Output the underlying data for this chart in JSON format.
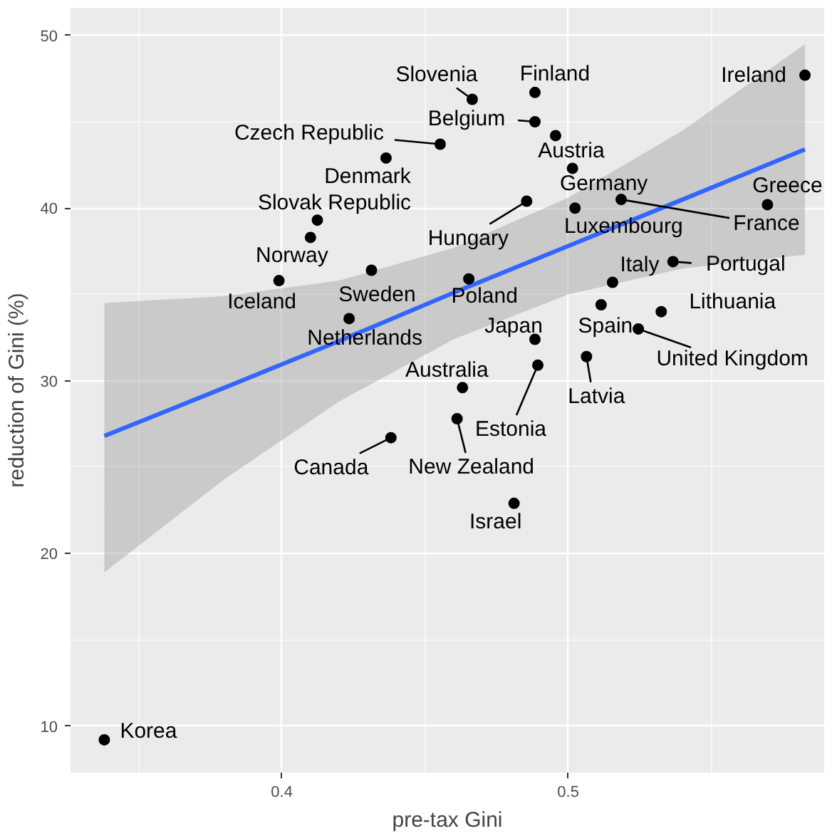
{
  "chart_data": {
    "type": "scatter",
    "xlabel": "pre-tax Gini",
    "ylabel": "reduction of Gini (%)",
    "xlim": [
      0.3262,
      0.5894
    ],
    "ylim": [
      7.3,
      51.6
    ],
    "xticks": [
      0.4,
      0.5
    ],
    "yticks": [
      10,
      20,
      30,
      40,
      50
    ],
    "grid": true,
    "marker": "circle",
    "x": [
      0.338,
      0.399,
      0.41,
      0.4124,
      0.4364,
      0.4553,
      0.4313,
      0.4235,
      0.4665,
      0.4884,
      0.4884,
      0.4956,
      0.5015,
      0.4855,
      0.5024,
      0.5185,
      0.5696,
      0.5827,
      0.5366,
      0.5155,
      0.4653,
      0.5115,
      0.5325,
      0.5245,
      0.4884,
      0.4894,
      0.5064,
      0.4631,
      0.4612,
      0.4381,
      0.4811
    ],
    "series": [
      {
        "color": "#000000",
        "values": [
          9.2,
          35.8,
          38.3,
          39.3,
          42.9,
          43.7,
          36.4,
          33.6,
          46.3,
          46.7,
          45.0,
          44.2,
          42.3,
          40.4,
          40.0,
          40.5,
          40.2,
          47.7,
          36.9,
          35.7,
          35.9,
          34.4,
          34.0,
          33.0,
          32.4,
          30.9,
          31.4,
          29.6,
          27.8,
          26.7,
          22.9
        ]
      },
      {
        "type": "line",
        "marker": "none",
        "color": "#3366ff",
        "x": [
          0.338,
          0.38,
          0.42,
          0.46,
          0.5,
          0.54,
          0.5827
        ],
        "values": [
          26.8,
          29.6,
          32.3,
          35.1,
          37.8,
          40.5,
          43.4
        ],
        "lower": [
          18.9,
          24.3,
          28.8,
          32.4,
          35.0,
          36.5,
          37.3
        ],
        "upper": [
          34.5,
          34.9,
          35.8,
          37.7,
          40.6,
          44.5,
          49.5
        ]
      }
    ],
    "annotations": [
      {
        "text": "Korea",
        "x": 0.338,
        "y": 9.2
      },
      {
        "text": "Iceland",
        "x": 0.399,
        "y": 35.8
      },
      {
        "text": "Norway",
        "x": 0.41,
        "y": 38.3
      },
      {
        "text": "Slovak Republic",
        "x": 0.4124,
        "y": 39.3
      },
      {
        "text": "Denmark",
        "x": 0.4364,
        "y": 42.9
      },
      {
        "text": "Czech Republic",
        "x": 0.4553,
        "y": 43.7
      },
      {
        "text": "Sweden",
        "x": 0.4313,
        "y": 36.4
      },
      {
        "text": "Netherlands",
        "x": 0.4235,
        "y": 33.6
      },
      {
        "text": "Slovenia",
        "x": 0.4665,
        "y": 46.3
      },
      {
        "text": "Finland",
        "x": 0.4884,
        "y": 46.7
      },
      {
        "text": "Belgium",
        "x": 0.4884,
        "y": 45.0
      },
      {
        "text": "Austria",
        "x": 0.4956,
        "y": 44.2
      },
      {
        "text": "Germany",
        "x": 0.5015,
        "y": 42.3
      },
      {
        "text": "Hungary",
        "x": 0.4855,
        "y": 40.4
      },
      {
        "text": "Luxembourg",
        "x": 0.5024,
        "y": 40.0
      },
      {
        "text": "France",
        "x": 0.5185,
        "y": 40.5
      },
      {
        "text": "Greece",
        "x": 0.5696,
        "y": 40.2
      },
      {
        "text": "Ireland",
        "x": 0.5827,
        "y": 47.7
      },
      {
        "text": "Portugal",
        "x": 0.5366,
        "y": 36.9
      },
      {
        "text": "Italy",
        "x": 0.5155,
        "y": 35.7
      },
      {
        "text": "Poland",
        "x": 0.4653,
        "y": 35.9
      },
      {
        "text": "Spain",
        "x": 0.5115,
        "y": 34.4
      },
      {
        "text": "Lithuania",
        "x": 0.5325,
        "y": 34.0
      },
      {
        "text": "United Kingdom",
        "x": 0.5245,
        "y": 33.0
      },
      {
        "text": "Japan",
        "x": 0.4884,
        "y": 32.4
      },
      {
        "text": "Estonia",
        "x": 0.4894,
        "y": 30.9
      },
      {
        "text": "Latvia",
        "x": 0.5064,
        "y": 31.4
      },
      {
        "text": "Australia",
        "x": 0.4631,
        "y": 29.6
      },
      {
        "text": "New Zealand",
        "x": 0.4612,
        "y": 27.8
      },
      {
        "text": "Canada",
        "x": 0.4381,
        "y": 26.7
      },
      {
        "text": "Israel",
        "x": 0.4811,
        "y": 22.9
      }
    ]
  }
}
